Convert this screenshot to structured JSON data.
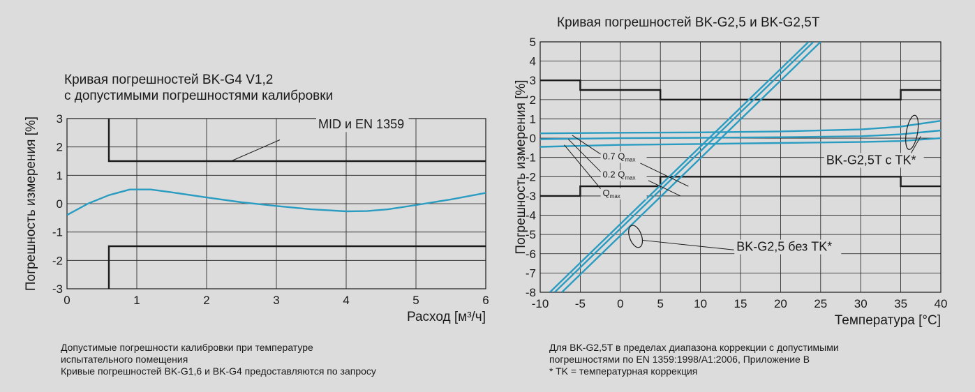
{
  "captions": {
    "left": [
      "Допустимые погрешности калибровки при температуре",
      "испытательного помещения",
      "Кривые погрешностей BK-G1,6 и BK-G4 предоставляются по запросу"
    ],
    "right": [
      "Для BK-G2,5T в пределах диапазона коррекции с допустимыми",
      "погрешностями по EN 1359:1998/A1:2006, Приложение B",
      "* TK = температурная коррекция"
    ]
  },
  "colors": {
    "curve": "#2a9cc2",
    "limit": "#1a1a1a",
    "grid": "#1a1a1a",
    "background": "#dcdcdc"
  },
  "chart_data": [
    {
      "type": "line",
      "title": "Кривая погрешностей BK-G4 V1,2",
      "subtitle": "с допустимыми погрешностями калибровки",
      "xlabel": "Расход [м³/ч]",
      "ylabel": "Погрешность измерения [%]",
      "xlim": [
        0,
        6
      ],
      "ylim": [
        -3,
        3
      ],
      "xticks": [
        0,
        1,
        2,
        3,
        4,
        5,
        6
      ],
      "yticks": [
        -3,
        -2,
        -1,
        0,
        1,
        2,
        3
      ],
      "grid": true,
      "series": [
        {
          "role": "curve",
          "x": [
            0,
            0.3,
            0.6,
            0.9,
            1.2,
            1.5,
            2,
            2.5,
            3,
            3.5,
            4,
            4.3,
            4.6,
            5,
            5.5,
            6
          ],
          "y": [
            -0.4,
            0,
            0.3,
            0.5,
            0.5,
            0.4,
            0.22,
            0.05,
            -0.08,
            -0.2,
            -0.27,
            -0.26,
            -0.2,
            -0.05,
            0.15,
            0.38
          ]
        },
        {
          "role": "limit",
          "x": [
            0.6,
            0.6,
            6
          ],
          "y": [
            3,
            1.5,
            1.5
          ]
        },
        {
          "role": "limit",
          "x": [
            0.6,
            0.6,
            6
          ],
          "y": [
            -3,
            -1.5,
            -1.5
          ]
        }
      ],
      "annotations": [
        {
          "text": "MID и EN 1359",
          "x": 3.6,
          "y": 2.65,
          "pointer": [
            [
              3.05,
              2.25
            ],
            [
              2.35,
              1.5
            ]
          ]
        }
      ]
    },
    {
      "type": "line",
      "title": "Кривая погрешностей BK-G2,5 и BK-G2,5T",
      "xlabel": "Температура [°C]",
      "ylabel": "Погрешность измерения [%]",
      "xlim": [
        -10,
        40
      ],
      "ylim": [
        -8,
        5
      ],
      "xticks": [
        -10,
        -5,
        0,
        5,
        10,
        15,
        20,
        25,
        30,
        35,
        40
      ],
      "yticks": [
        -8,
        -7,
        -6,
        -5,
        -4,
        -3,
        -2,
        -1,
        0,
        1,
        2,
        3,
        4,
        5
      ],
      "grid": true,
      "series": [
        {
          "role": "limit",
          "x": [
            -10,
            -5,
            -5,
            5,
            5,
            35,
            35,
            40
          ],
          "y": [
            3,
            3,
            2.5,
            2.5,
            2,
            2,
            2.5,
            2.5
          ]
        },
        {
          "role": "limit",
          "x": [
            -10,
            -5,
            -5,
            5,
            5,
            35,
            35,
            40
          ],
          "y": [
            -3,
            -3,
            -2.5,
            -2.5,
            -2,
            -2,
            -2.5,
            -2.5
          ]
        },
        {
          "role": "curve",
          "x": [
            -8.8,
            23.5
          ],
          "y": [
            -8,
            5
          ]
        },
        {
          "role": "curve",
          "x": [
            -8.2,
            24.1
          ],
          "y": [
            -8,
            5
          ]
        },
        {
          "role": "curve",
          "x": [
            -7.3,
            25
          ],
          "y": [
            -8,
            5
          ]
        },
        {
          "role": "curve",
          "x": [
            -10,
            0,
            10,
            20,
            30,
            35,
            40
          ],
          "y": [
            0.25,
            0.28,
            0.3,
            0.35,
            0.45,
            0.6,
            0.9
          ]
        },
        {
          "role": "curve",
          "x": [
            -10,
            0,
            10,
            20,
            30,
            35,
            40
          ],
          "y": [
            -0.05,
            0,
            0.02,
            0.05,
            0.1,
            0.2,
            0.4
          ]
        },
        {
          "role": "curve",
          "x": [
            -10,
            0,
            10,
            20,
            30,
            35,
            40
          ],
          "y": [
            -0.45,
            -0.35,
            -0.3,
            -0.25,
            -0.2,
            -0.15,
            0
          ]
        }
      ],
      "annotations": [
        {
          "text": "0.7 Q",
          "sub": "max",
          "x": -2.2,
          "y": -1.1,
          "pointer": [
            [
              -2.2,
              -0.9
            ],
            [
              -6,
              0.15
            ]
          ],
          "tail": [
            [
              2.5,
              -1.3
            ],
            [
              8.5,
              -2.5
            ]
          ]
        },
        {
          "text": "0.2 Q",
          "sub": "max",
          "x": -2.2,
          "y": -2.05,
          "pointer": [
            [
              -2.2,
              -1.85
            ],
            [
              -6.5,
              -0.05
            ]
          ],
          "tail": [
            [
              3.5,
              -2.2
            ],
            [
              7.5,
              -3
            ]
          ]
        },
        {
          "text": "Q",
          "sub": "max",
          "x": -2.2,
          "y": -3.0,
          "pointer": [
            [
              -2.2,
              -2.75
            ],
            [
              -7,
              -0.35
            ]
          ]
        },
        {
          "text": "BK-G2,5T с TK*",
          "x": 25.7,
          "y": -1.35,
          "pointer": [
            [
              35.7,
              -1.2
            ],
            [
              37.5,
              0.1
            ]
          ]
        },
        {
          "text": "BK-G2,5 без TK*",
          "x": 14.5,
          "y": -5.85,
          "pointer": [
            [
              14.2,
              -5.8
            ],
            [
              2.8,
              -5.3
            ]
          ]
        }
      ],
      "ellipses": [
        {
          "cx": 1.9,
          "cy": -5.1,
          "rx": 0.75,
          "ry": 0.6,
          "rotate": -20
        },
        {
          "cx": 36.4,
          "cy": 0.3,
          "rx": 0.7,
          "ry": 0.9,
          "rotate": 10
        }
      ]
    }
  ]
}
